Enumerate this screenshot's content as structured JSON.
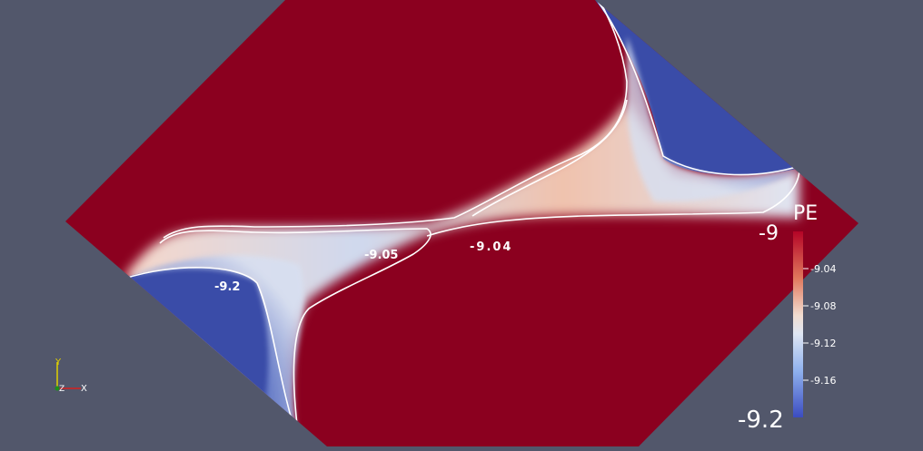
{
  "colors": {
    "background": "#52576b",
    "low": "#3a4ca8",
    "high": "#8b001f",
    "mid": "#f2ece6",
    "contour": "#ffffff",
    "axis_x": "#d62020",
    "axis_y": "#e0d000",
    "axis_z": "#1b8f1b"
  },
  "contour_labels": [
    "-9.2",
    "-9.05",
    "-9.04"
  ],
  "legend": {
    "title": "PE",
    "max_label": "-9",
    "min_label": "-9.2",
    "ticks": [
      "-9.04",
      "-9.08",
      "-9.12",
      "-9.16"
    ]
  },
  "axes": {
    "x": "X",
    "y": "Y",
    "z": "Z"
  }
}
